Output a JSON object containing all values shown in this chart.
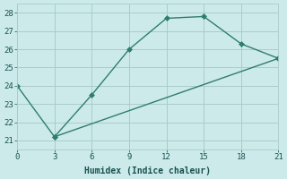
{
  "line1_x": [
    0,
    3,
    6,
    9,
    12,
    15,
    18,
    21
  ],
  "line1_y": [
    24.0,
    21.2,
    23.5,
    26.0,
    27.7,
    27.8,
    26.3,
    25.5
  ],
  "line2_x": [
    3,
    21
  ],
  "line2_y": [
    21.2,
    25.5
  ],
  "color": "#2e7d6e",
  "bg_color": "#cceaea",
  "grid_color": "#aacccc",
  "xlabel": "Humidex (Indice chaleur)",
  "xlim": [
    0,
    21
  ],
  "ylim": [
    20.5,
    28.5
  ],
  "xticks": [
    0,
    3,
    6,
    9,
    12,
    15,
    18,
    21
  ],
  "yticks": [
    21,
    22,
    23,
    24,
    25,
    26,
    27,
    28
  ],
  "marker": "D",
  "markersize": 3,
  "linewidth": 1.0
}
